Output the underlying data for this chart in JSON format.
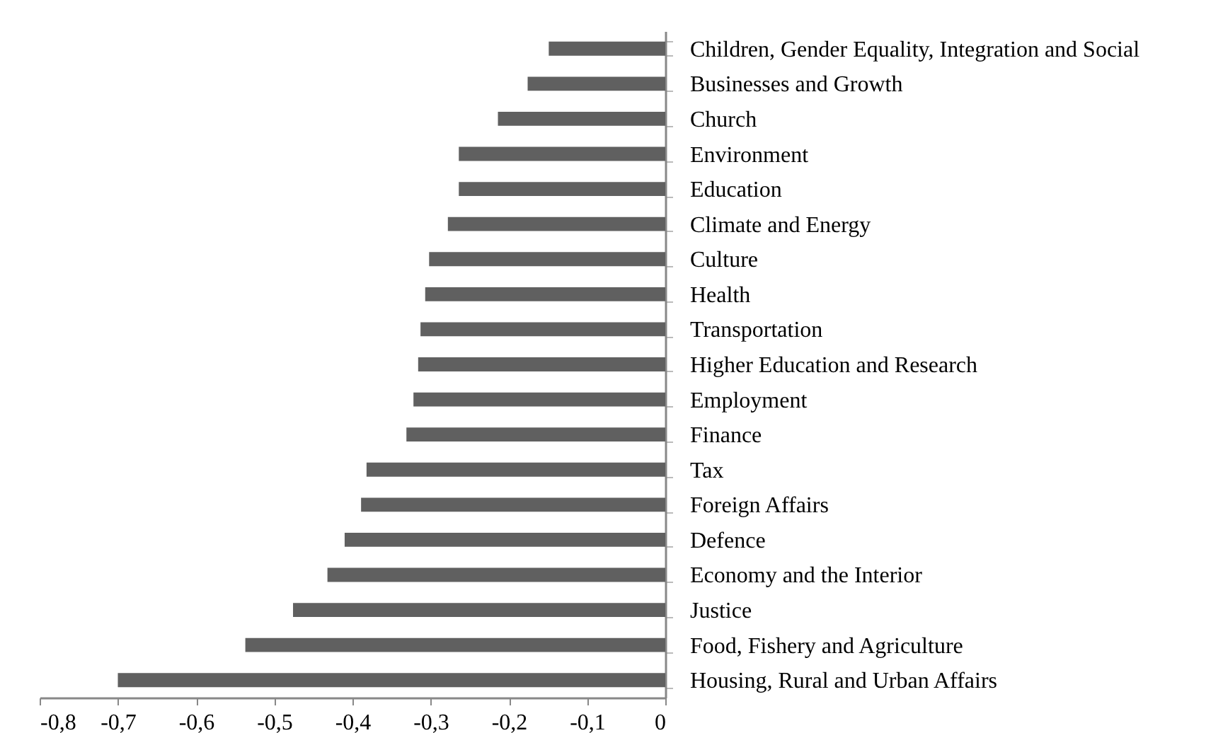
{
  "chart_data": {
    "type": "bar",
    "orientation": "horizontal",
    "categories": [
      "Children, Gender Equality, Integration and Social",
      "Businesses and Growth",
      "Church",
      "Environment",
      "Education",
      "Climate and Energy",
      "Culture",
      "Health",
      "Transportation",
      "Higher Education and Research",
      "Employment",
      "Finance",
      "Tax",
      "Foreign Affairs",
      "Defence",
      "Economy and the Interior",
      "Justice",
      "Food, Fishery and Agriculture",
      "Housing, Rural and Urban Affairs"
    ],
    "values": [
      -0.149,
      -0.176,
      -0.214,
      -0.264,
      -0.264,
      -0.278,
      -0.302,
      -0.307,
      -0.313,
      -0.316,
      -0.322,
      -0.331,
      -0.382,
      -0.389,
      -0.41,
      -0.432,
      -0.476,
      -0.537,
      -0.7
    ],
    "color": "#606060",
    "xlim": [
      -0.8,
      0
    ],
    "xticks": [
      {
        "value": -0.8,
        "label": "-0,8"
      },
      {
        "value": -0.7,
        "label": "-0,7"
      },
      {
        "value": -0.6,
        "label": "-0,6"
      },
      {
        "value": -0.5,
        "label": "-0,5"
      },
      {
        "value": -0.4,
        "label": "-0,4"
      },
      {
        "value": -0.3,
        "label": "-0,3"
      },
      {
        "value": -0.2,
        "label": "-0,2"
      },
      {
        "value": -0.1,
        "label": "-0,1"
      },
      {
        "value": 0,
        "label": "0"
      }
    ],
    "grid": false
  }
}
